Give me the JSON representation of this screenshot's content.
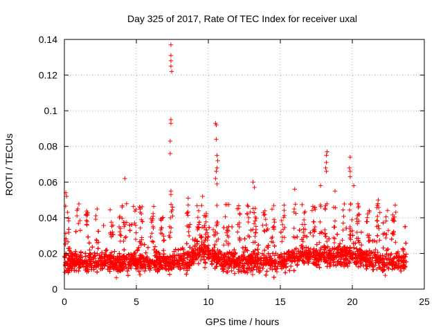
{
  "chart_data": {
    "type": "scatter",
    "title": "Day 325 of 2017, Rate Of TEC Index for receiver uxal",
    "xlabel": "GPS time / hours",
    "ylabel": "ROTI / TECUs",
    "xlim": [
      0,
      25
    ],
    "ylim": [
      0,
      0.14
    ],
    "x_ticks": [
      0,
      5,
      10,
      15,
      20,
      25
    ],
    "x_tick_labels": [
      "0",
      "5",
      "10",
      "15",
      "20",
      "25"
    ],
    "y_ticks": [
      0,
      0.02,
      0.04,
      0.06,
      0.08,
      0.1,
      0.12,
      0.14
    ],
    "y_tick_labels": [
      "0",
      "0.02",
      "0.04",
      "0.06",
      "0.08",
      "0.1",
      "0.12",
      "0.14"
    ],
    "grid": true,
    "marker": "plus",
    "color": "#ff0000",
    "data_range_x": [
      0,
      23.75
    ],
    "baseline_band": [
      0.005,
      0.03
    ],
    "outliers": [
      {
        "x": 7.4,
        "y": 0.137
      },
      {
        "x": 7.4,
        "y": 0.131
      },
      {
        "x": 7.4,
        "y": 0.128
      },
      {
        "x": 7.4,
        "y": 0.125
      },
      {
        "x": 7.45,
        "y": 0.122
      },
      {
        "x": 7.4,
        "y": 0.095
      },
      {
        "x": 7.4,
        "y": 0.093
      },
      {
        "x": 7.35,
        "y": 0.083
      },
      {
        "x": 7.35,
        "y": 0.076
      },
      {
        "x": 7.4,
        "y": 0.055
      },
      {
        "x": 7.4,
        "y": 0.053
      },
      {
        "x": 10.5,
        "y": 0.093
      },
      {
        "x": 10.55,
        "y": 0.092
      },
      {
        "x": 10.55,
        "y": 0.084
      },
      {
        "x": 10.6,
        "y": 0.075
      },
      {
        "x": 10.65,
        "y": 0.072
      },
      {
        "x": 10.6,
        "y": 0.068
      },
      {
        "x": 10.55,
        "y": 0.066
      },
      {
        "x": 10.5,
        "y": 0.062
      },
      {
        "x": 10.6,
        "y": 0.059
      },
      {
        "x": 4.2,
        "y": 0.062
      },
      {
        "x": 0.1,
        "y": 0.054
      },
      {
        "x": 0.15,
        "y": 0.052
      },
      {
        "x": 18.25,
        "y": 0.077
      },
      {
        "x": 18.2,
        "y": 0.075
      },
      {
        "x": 18.2,
        "y": 0.071
      },
      {
        "x": 18.15,
        "y": 0.068
      },
      {
        "x": 18.2,
        "y": 0.066
      },
      {
        "x": 19.85,
        "y": 0.074
      },
      {
        "x": 19.8,
        "y": 0.068
      },
      {
        "x": 19.85,
        "y": 0.066
      },
      {
        "x": 19.85,
        "y": 0.063
      },
      {
        "x": 20.1,
        "y": 0.058
      },
      {
        "x": 13.1,
        "y": 0.06
      },
      {
        "x": 13.2,
        "y": 0.057
      },
      {
        "x": 16.0,
        "y": 0.056
      },
      {
        "x": 17.8,
        "y": 0.058
      },
      {
        "x": 18.8,
        "y": 0.055
      },
      {
        "x": 21.8,
        "y": 0.05
      },
      {
        "x": 9.6,
        "y": 0.052
      },
      {
        "x": 8.6,
        "y": 0.051
      }
    ]
  }
}
